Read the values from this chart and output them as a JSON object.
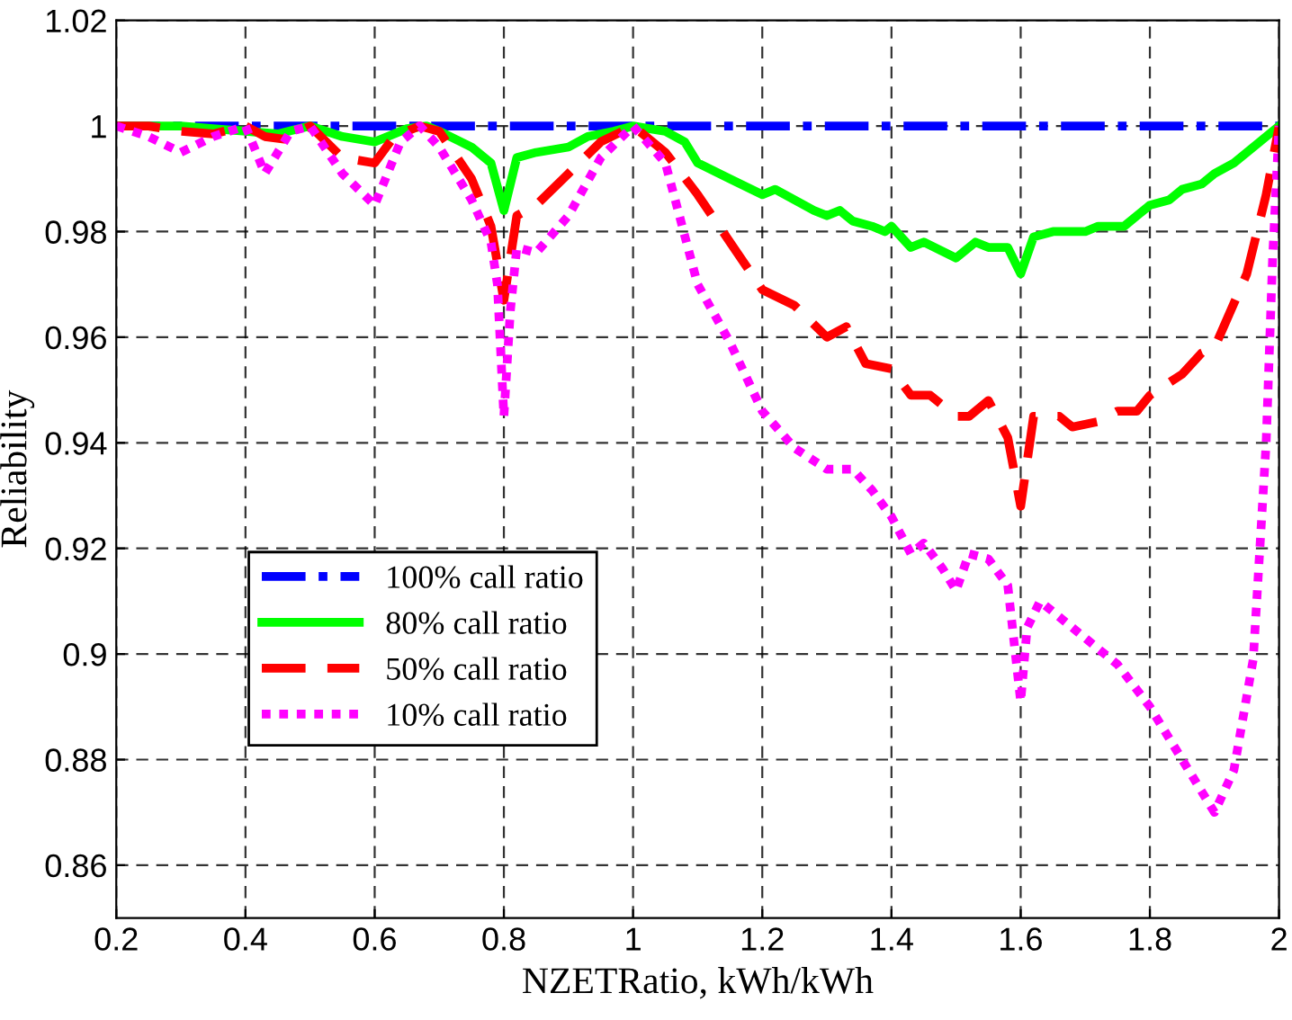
{
  "chart_data": {
    "type": "line",
    "xlabel": "NZETRatio, kWh/kWh",
    "ylabel": "Reliability",
    "xlim": [
      0.2,
      2
    ],
    "xticks": [
      0.2,
      0.4,
      0.6,
      0.8,
      1,
      1.2,
      1.4,
      1.6,
      1.8,
      2
    ],
    "ylim": [
      0.85,
      1.02
    ],
    "yticks": [
      0.86,
      0.88,
      0.9,
      0.92,
      0.94,
      0.96,
      0.98,
      1,
      1.02
    ],
    "grid": true,
    "legend": "left",
    "series": [
      {
        "name": "100% call ratio",
        "color": "#0000ff",
        "line_style": "dashdot",
        "x": [
          0.2,
          2.0
        ],
        "values": [
          1,
          1
        ]
      },
      {
        "name": "80% call ratio",
        "color": "#00ff00",
        "line_style": "solid",
        "x": [
          0.2,
          0.25,
          0.3,
          0.35,
          0.4,
          0.45,
          0.5,
          0.55,
          0.6,
          0.65,
          0.68,
          0.7,
          0.75,
          0.78,
          0.8,
          0.82,
          0.85,
          0.9,
          0.93,
          0.97,
          1.0,
          1.05,
          1.08,
          1.1,
          1.15,
          1.2,
          1.22,
          1.25,
          1.28,
          1.3,
          1.32,
          1.34,
          1.37,
          1.39,
          1.4,
          1.43,
          1.45,
          1.5,
          1.53,
          1.55,
          1.58,
          1.6,
          1.62,
          1.65,
          1.7,
          1.72,
          1.76,
          1.8,
          1.83,
          1.85,
          1.88,
          1.9,
          1.93,
          1.97,
          2.0
        ],
        "values": [
          1,
          1,
          1,
          0.9995,
          0.999,
          0.9985,
          1,
          0.998,
          0.997,
          0.9995,
          1,
          0.999,
          0.996,
          0.993,
          0.984,
          0.994,
          0.995,
          0.996,
          0.998,
          0.999,
          1,
          0.999,
          0.997,
          0.993,
          0.99,
          0.987,
          0.988,
          0.986,
          0.984,
          0.983,
          0.984,
          0.982,
          0.981,
          0.98,
          0.981,
          0.977,
          0.978,
          0.975,
          0.978,
          0.977,
          0.977,
          0.972,
          0.979,
          0.98,
          0.98,
          0.981,
          0.981,
          0.985,
          0.986,
          0.988,
          0.989,
          0.991,
          0.993,
          0.997,
          1
        ]
      },
      {
        "name": "50% call ratio",
        "color": "#ff0000",
        "line_style": "dashed",
        "x": [
          0.2,
          0.25,
          0.3,
          0.35,
          0.4,
          0.43,
          0.46,
          0.5,
          0.55,
          0.6,
          0.63,
          0.67,
          0.7,
          0.75,
          0.78,
          0.8,
          0.82,
          0.85,
          0.9,
          0.95,
          1.0,
          1.05,
          1.1,
          1.15,
          1.2,
          1.25,
          1.3,
          1.33,
          1.36,
          1.4,
          1.43,
          1.46,
          1.5,
          1.52,
          1.55,
          1.58,
          1.6,
          1.62,
          1.66,
          1.68,
          1.72,
          1.75,
          1.78,
          1.8,
          1.85,
          1.88,
          1.9,
          1.95,
          1.98,
          2.0
        ],
        "values": [
          1,
          1,
          0.999,
          0.9985,
          1,
          0.998,
          0.9975,
          1,
          0.994,
          0.993,
          0.998,
          1,
          0.999,
          0.99,
          0.981,
          0.967,
          0.983,
          0.985,
          0.991,
          0.997,
          1,
          0.995,
          0.987,
          0.978,
          0.969,
          0.966,
          0.96,
          0.962,
          0.955,
          0.954,
          0.949,
          0.949,
          0.945,
          0.945,
          0.948,
          0.941,
          0.928,
          0.945,
          0.945,
          0.943,
          0.944,
          0.946,
          0.946,
          0.949,
          0.953,
          0.957,
          0.958,
          0.972,
          0.987,
          1
        ]
      },
      {
        "name": "10% call ratio",
        "color": "#ff00ff",
        "line_style": "dotted",
        "x": [
          0.2,
          0.25,
          0.3,
          0.35,
          0.4,
          0.43,
          0.47,
          0.5,
          0.55,
          0.6,
          0.64,
          0.67,
          0.7,
          0.75,
          0.78,
          0.79,
          0.8,
          0.81,
          0.82,
          0.85,
          0.9,
          0.95,
          1.0,
          1.05,
          1.1,
          1.15,
          1.2,
          1.25,
          1.3,
          1.34,
          1.37,
          1.4,
          1.43,
          1.45,
          1.48,
          1.5,
          1.52,
          1.55,
          1.58,
          1.6,
          1.61,
          1.63,
          1.7,
          1.75,
          1.8,
          1.85,
          1.88,
          1.9,
          1.93,
          1.96,
          1.98,
          1.99,
          2.0
        ],
        "values": [
          1,
          0.998,
          0.995,
          0.998,
          1,
          0.991,
          0.999,
          1,
          0.991,
          0.985,
          0.997,
          1,
          0.996,
          0.986,
          0.978,
          0.97,
          0.945,
          0.965,
          0.977,
          0.976,
          0.983,
          0.994,
          1,
          0.993,
          0.97,
          0.959,
          0.946,
          0.939,
          0.935,
          0.935,
          0.931,
          0.926,
          0.919,
          0.921,
          0.916,
          0.912,
          0.919,
          0.918,
          0.913,
          0.891,
          0.905,
          0.91,
          0.903,
          0.898,
          0.89,
          0.88,
          0.874,
          0.87,
          0.878,
          0.899,
          0.94,
          0.975,
          1
        ]
      }
    ]
  }
}
